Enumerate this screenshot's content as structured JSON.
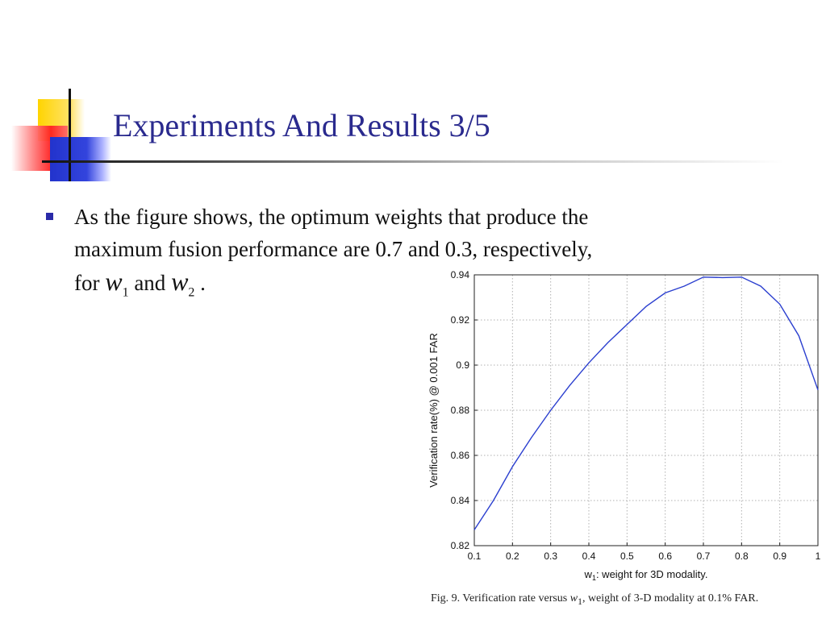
{
  "slide": {
    "title": "Experiments And Results 3/5",
    "bullet_line1": "As the figure shows, the optimum weights that produce the",
    "bullet_line2": "maximum fusion performance are 0.7 and 0.3, respectively,",
    "bullet_for": "for",
    "bullet_and": "and",
    "bullet_end": ".",
    "var1": "w",
    "var1_sub": "1",
    "var2": "w",
    "var2_sub": "2"
  },
  "figure": {
    "caption_prefix": "Fig. 9.   Verification rate versus ",
    "caption_var": "w",
    "caption_var_sub": "1",
    "caption_suffix": ", weight of 3-D modality at 0.1% FAR."
  },
  "colors": {
    "title": "#2a2a8e",
    "line": "#2b3fcf",
    "grid": "#b0b0b0"
  },
  "chart_data": {
    "type": "line",
    "xlabel_var": "w",
    "xlabel_sub": "1",
    "xlabel_rest": ": weight for 3D modality.",
    "ylabel": "Verification rate(%) @ 0.001 FAR",
    "xlim": [
      0.1,
      1
    ],
    "ylim": [
      0.82,
      0.94
    ],
    "xticks": [
      "0.1",
      "0.2",
      "0.3",
      "0.4",
      "0.5",
      "0.6",
      "0.7",
      "0.8",
      "0.9",
      "1"
    ],
    "yticks": [
      "0.82",
      "0.84",
      "0.86",
      "0.88",
      "0.9",
      "0.92",
      "0.94"
    ],
    "grid": true,
    "series": [
      {
        "x": [
          0.1,
          0.15,
          0.2,
          0.25,
          0.3,
          0.35,
          0.4,
          0.45,
          0.5,
          0.55,
          0.6,
          0.65,
          0.7,
          0.75,
          0.8,
          0.85,
          0.9,
          0.95,
          1.0
        ],
        "y": [
          0.827,
          0.84,
          0.855,
          0.868,
          0.88,
          0.891,
          0.901,
          0.91,
          0.918,
          0.926,
          0.932,
          0.935,
          0.939,
          0.9388,
          0.939,
          0.935,
          0.927,
          0.913,
          0.889
        ]
      }
    ]
  }
}
